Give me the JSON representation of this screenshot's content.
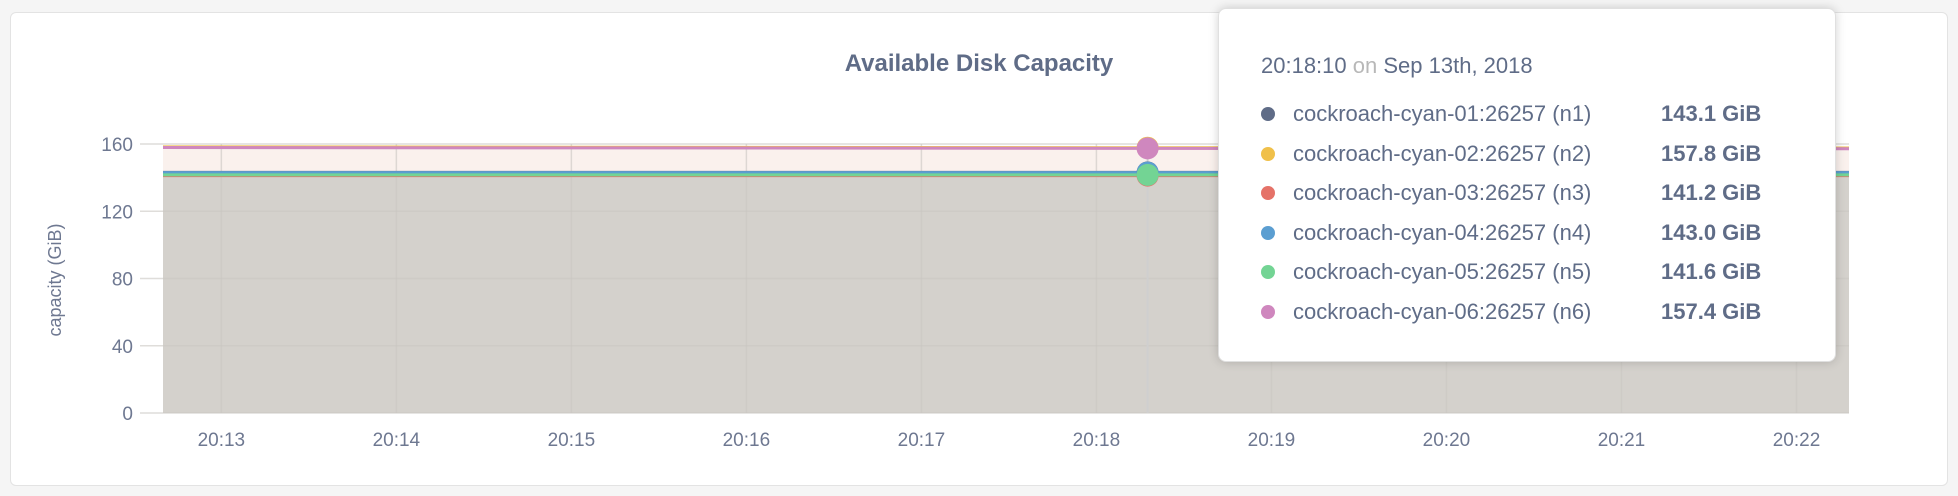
{
  "chart_data": {
    "type": "area",
    "title": "Available Disk Capacity",
    "ylabel": "capacity (GiB)",
    "xlabel": "",
    "ylim": [
      0,
      160
    ],
    "yticks": [
      "0",
      "40",
      "80",
      "120",
      "160"
    ],
    "xlim": [
      "20:12:40",
      "20:22:18"
    ],
    "xticks": [
      "20:13",
      "20:14",
      "20:15",
      "20:16",
      "20:17",
      "20:18",
      "20:19",
      "20:20",
      "20:21",
      "20:22"
    ],
    "grid": true,
    "x": [
      "20:12:40",
      "20:15:00",
      "20:18:10",
      "20:22:18"
    ],
    "series": [
      {
        "name": "cockroach-cyan-01:26257 (n1)",
        "color": "#5f6c87",
        "values": [
          143.1,
          143.1,
          143.1,
          143.1
        ]
      },
      {
        "name": "cockroach-cyan-02:26257 (n2)",
        "color": "#f0c04a",
        "values": [
          158.3,
          158.1,
          157.8,
          157.6
        ]
      },
      {
        "name": "cockroach-cyan-03:26257 (n3)",
        "color": "#e57268",
        "values": [
          141.2,
          141.2,
          141.2,
          141.2
        ]
      },
      {
        "name": "cockroach-cyan-04:26257 (n4)",
        "color": "#5b9ed1",
        "values": [
          143.0,
          143.0,
          143.0,
          143.0
        ]
      },
      {
        "name": "cockroach-cyan-05:26257 (n5)",
        "color": "#73d494",
        "values": [
          141.6,
          141.6,
          141.6,
          141.6
        ]
      },
      {
        "name": "cockroach-cyan-06:26257 (n6)",
        "color": "#cf87be",
        "values": [
          157.9,
          157.7,
          157.4,
          157.2
        ]
      }
    ],
    "hover": {
      "time": "20:18:10",
      "on": "on",
      "date": "Sep 13th, 2018"
    }
  },
  "tooltip_values": [
    "143.1 GiB",
    "157.8 GiB",
    "141.2 GiB",
    "143.0 GiB",
    "141.6 GiB",
    "157.4 GiB"
  ]
}
